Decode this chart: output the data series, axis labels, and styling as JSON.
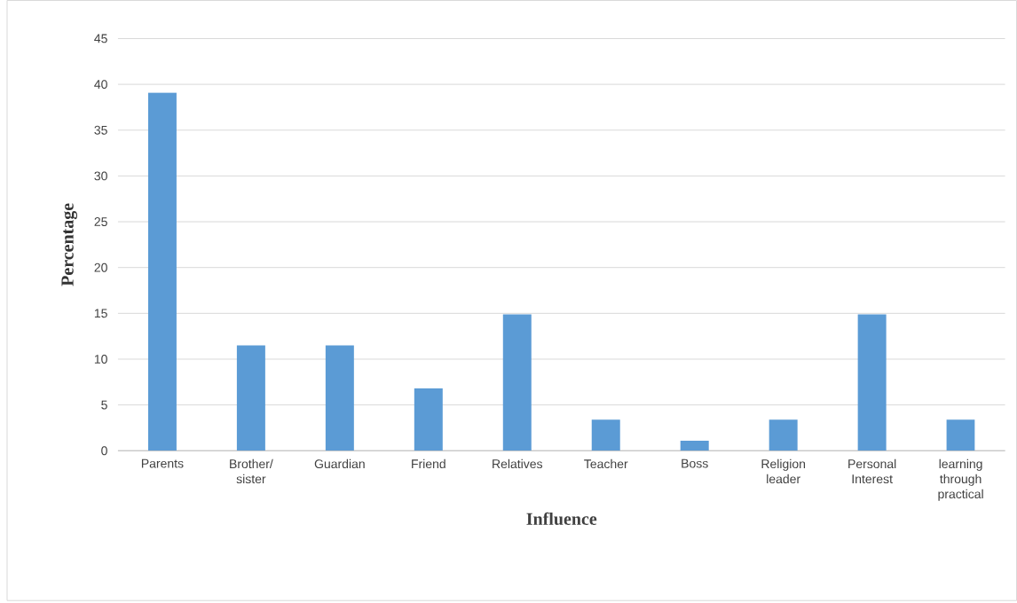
{
  "chart_data": {
    "type": "bar",
    "xlabel": "Influence",
    "ylabel": "Percentage",
    "categories": [
      "Parents",
      "Brother/ sister",
      "Guardian",
      "Friend",
      "Relatives",
      "Teacher",
      "Boss",
      "Religion leader",
      "Personal Interest",
      "learning through practical"
    ],
    "values": [
      39.1,
      11.5,
      11.5,
      6.8,
      14.9,
      3.4,
      1.1,
      3.4,
      14.9,
      3.4
    ],
    "color": "#5b9bd5",
    "ylim": [
      0,
      45
    ],
    "yticks": [
      0,
      5,
      10,
      15,
      20,
      25,
      30,
      35,
      40,
      45
    ],
    "grid": "y"
  }
}
